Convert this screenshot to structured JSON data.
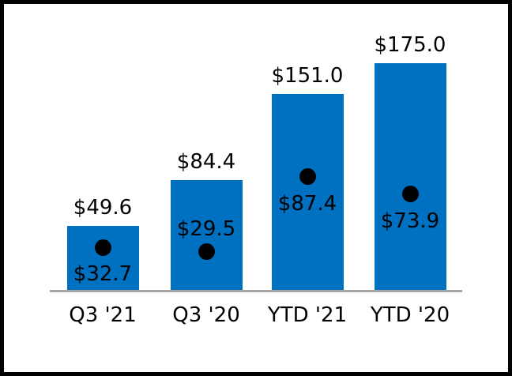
{
  "chart_data": {
    "type": "bar",
    "categories": [
      "Q3 '21",
      "Q3 '20",
      "YTD '21",
      "YTD '20"
    ],
    "series": [
      {
        "name": "bars",
        "type": "bar",
        "values": [
          49.6,
          84.4,
          151.0,
          175.0
        ],
        "data_labels": [
          "$49.6",
          "$84.4",
          "$151.0",
          "$175.0"
        ],
        "color": "#0070C0"
      },
      {
        "name": "dots",
        "type": "scatter",
        "values": [
          32.7,
          29.5,
          87.4,
          73.9
        ],
        "data_labels": [
          "$32.7",
          "$29.5",
          "$87.4",
          "$73.9"
        ],
        "label_positions": [
          "below",
          "above",
          "below",
          "below"
        ],
        "color": "#000000"
      }
    ],
    "ylim": [
      0,
      220
    ],
    "grid": false,
    "legend": "none",
    "data_label_color": "#000000",
    "axis_line_color": "#A6A6A6",
    "background": "#FFFFFF",
    "frame_border_color": "#000000"
  }
}
